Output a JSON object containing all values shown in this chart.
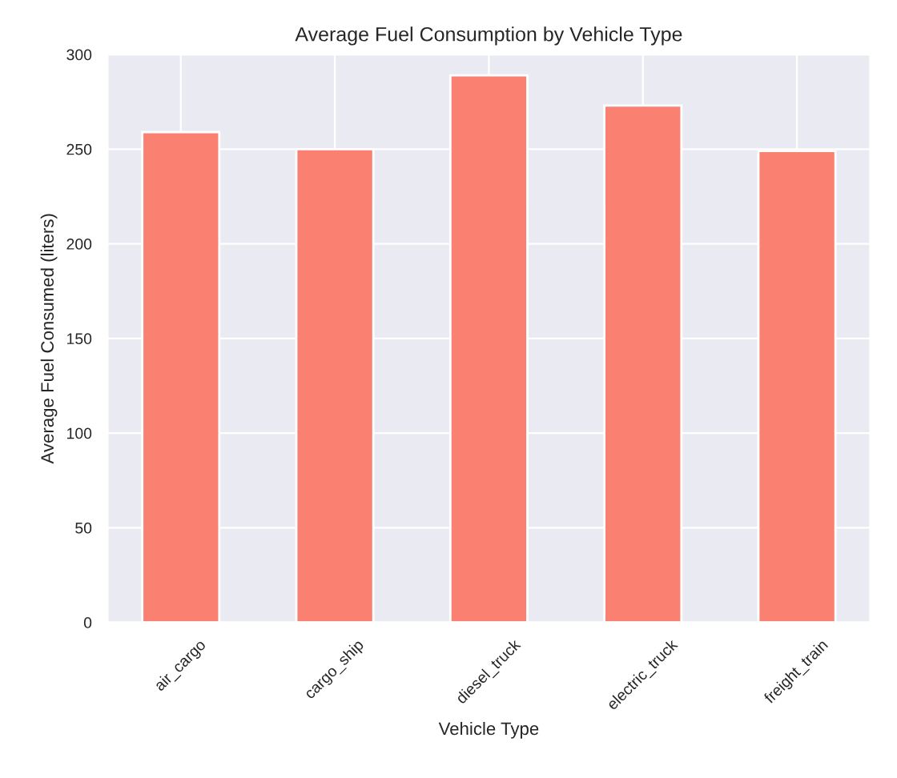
{
  "chart_data": {
    "type": "bar",
    "title": "Average Fuel Consumption by Vehicle Type",
    "xlabel": "Vehicle Type",
    "ylabel": "Average Fuel Consumed (liters)",
    "categories": [
      "air_cargo",
      "cargo_ship",
      "diesel_truck",
      "electric_truck",
      "freight_train"
    ],
    "values": [
      259,
      250,
      289,
      273,
      249
    ],
    "color": "#fa8072",
    "ylim": [
      0,
      300
    ],
    "yticks": [
      0,
      50,
      100,
      150,
      200,
      250,
      300
    ],
    "grid": true
  }
}
